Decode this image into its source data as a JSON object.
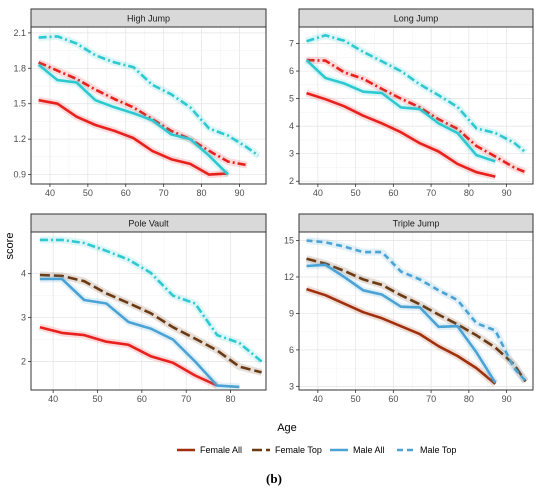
{
  "figure": {
    "caption": "(b)",
    "xlabel": "Age",
    "ylabel": "score"
  },
  "colors": {
    "Female All": "#e8211c",
    "Female Top": "#e8211c",
    "Male All": "#2ec9d0",
    "Male Top": "#2ec9d0"
  },
  "legend": [
    {
      "name": "Female All",
      "color": "#a0300b",
      "dash": "solid"
    },
    {
      "name": "Female Top",
      "color": "#6b3a13",
      "dash": "longdash"
    },
    {
      "name": "Male All",
      "color": "#4aa3d4",
      "dash": "solid"
    },
    {
      "name": "Male Top",
      "color": "#4aa3d4",
      "dash": "dashed"
    }
  ],
  "chart_data": [
    {
      "type": "line",
      "title": "High Jump",
      "xlim": [
        35,
        97
      ],
      "ylim": [
        0.82,
        2.15
      ],
      "xticks": [
        40,
        50,
        60,
        70,
        80,
        90
      ],
      "yticks": [
        0.9,
        1.2,
        1.5,
        1.8,
        2.1
      ],
      "ytick_labels": [
        "0.9",
        "1.2",
        "1.5",
        "1.8",
        "2.1"
      ],
      "series": [
        {
          "name": "Female All",
          "color": "#e8211c",
          "dash": "solid",
          "x": [
            37,
            42,
            47,
            52,
            57,
            62,
            67,
            72,
            77,
            82,
            87
          ],
          "y": [
            1.53,
            1.5,
            1.39,
            1.32,
            1.27,
            1.21,
            1.1,
            1.03,
            0.99,
            0.9,
            0.91
          ]
        },
        {
          "name": "Female Top",
          "color": "#e8211c",
          "dash": "dashdot",
          "x": [
            37,
            42,
            47,
            52,
            57,
            62,
            67,
            72,
            77,
            82,
            87,
            92
          ],
          "y": [
            1.85,
            1.78,
            1.71,
            1.62,
            1.54,
            1.47,
            1.37,
            1.27,
            1.2,
            1.1,
            1.01,
            0.98
          ]
        },
        {
          "name": "Male All",
          "color": "#2ec9d0",
          "dash": "solid",
          "x": [
            37,
            42,
            47,
            52,
            57,
            62,
            67,
            72,
            77,
            82,
            87
          ],
          "y": [
            1.83,
            1.7,
            1.68,
            1.53,
            1.47,
            1.42,
            1.36,
            1.24,
            1.2,
            1.06,
            0.9
          ]
        },
        {
          "name": "Male Top",
          "color": "#2ec9d0",
          "dash": "dashdot",
          "x": [
            37,
            42,
            47,
            52,
            57,
            62,
            67,
            72,
            77,
            82,
            87,
            92,
            95
          ],
          "y": [
            2.06,
            2.07,
            2.01,
            1.91,
            1.85,
            1.81,
            1.66,
            1.58,
            1.47,
            1.29,
            1.23,
            1.13,
            1.06
          ]
        }
      ]
    },
    {
      "type": "line",
      "title": "Long Jump",
      "xlim": [
        35,
        97
      ],
      "ylim": [
        1.9,
        7.6
      ],
      "xticks": [
        40,
        50,
        60,
        70,
        80,
        90
      ],
      "yticks": [
        2,
        3,
        4,
        5,
        6,
        7
      ],
      "ytick_labels": [
        "2",
        "3",
        "4",
        "5",
        "6",
        "7"
      ],
      "series": [
        {
          "name": "Female All",
          "color": "#e8211c",
          "dash": "solid",
          "x": [
            37,
            42,
            47,
            52,
            57,
            62,
            67,
            72,
            77,
            82,
            87
          ],
          "y": [
            5.2,
            4.98,
            4.72,
            4.38,
            4.1,
            3.78,
            3.38,
            3.08,
            2.63,
            2.33,
            2.17
          ]
        },
        {
          "name": "Female Top",
          "color": "#e8211c",
          "dash": "dashdot",
          "x": [
            37,
            42,
            47,
            52,
            57,
            62,
            67,
            72,
            77,
            82,
            87,
            92,
            95
          ],
          "y": [
            6.4,
            6.38,
            5.95,
            5.72,
            5.35,
            5.0,
            4.68,
            4.25,
            3.9,
            3.28,
            2.9,
            2.5,
            2.33
          ]
        },
        {
          "name": "Male All",
          "color": "#2ec9d0",
          "dash": "solid",
          "x": [
            37,
            42,
            47,
            52,
            57,
            62,
            67,
            72,
            77,
            82,
            87
          ],
          "y": [
            6.4,
            5.75,
            5.55,
            5.25,
            5.2,
            4.68,
            4.62,
            4.1,
            3.75,
            2.95,
            2.72
          ]
        },
        {
          "name": "Male Top",
          "color": "#2ec9d0",
          "dash": "dashdot",
          "x": [
            37,
            42,
            47,
            52,
            57,
            62,
            67,
            72,
            77,
            82,
            87,
            92,
            95
          ],
          "y": [
            7.08,
            7.3,
            7.1,
            6.7,
            6.35,
            6.0,
            5.52,
            5.12,
            4.7,
            3.92,
            3.75,
            3.4,
            3.05
          ]
        }
      ]
    },
    {
      "type": "line",
      "title": "Pole Vault",
      "xlim": [
        35,
        88
      ],
      "ylim": [
        1.35,
        4.95
      ],
      "xticks": [
        40,
        50,
        60,
        70,
        80
      ],
      "yticks": [
        2,
        3,
        4
      ],
      "ytick_labels": [
        "2",
        "3",
        "4"
      ],
      "series": [
        {
          "name": "Female All",
          "color": "#e8211c",
          "dash": "solid",
          "x": [
            37,
            42,
            47,
            52,
            57,
            62,
            67,
            72,
            77
          ],
          "y": [
            2.78,
            2.65,
            2.6,
            2.45,
            2.38,
            2.12,
            1.97,
            1.68,
            1.45
          ]
        },
        {
          "name": "Female Top",
          "color": "#6b3a13",
          "dash": "longdash",
          "x": [
            37,
            42,
            47,
            52,
            57,
            62,
            67,
            72,
            77,
            82,
            87
          ],
          "y": [
            3.97,
            3.95,
            3.83,
            3.55,
            3.33,
            3.1,
            2.78,
            2.52,
            2.25,
            1.88,
            1.75
          ]
        },
        {
          "name": "Male All",
          "color": "#4aa3d4",
          "dash": "solid",
          "x": [
            37,
            42,
            47,
            52,
            57,
            62,
            67,
            72,
            77,
            82
          ],
          "y": [
            3.88,
            3.88,
            3.4,
            3.32,
            2.9,
            2.75,
            2.5,
            2.0,
            1.45,
            1.42
          ]
        },
        {
          "name": "Male Top",
          "color": "#2ec9d0",
          "dash": "dashdot",
          "x": [
            37,
            42,
            47,
            52,
            57,
            62,
            67,
            72,
            77,
            82,
            87
          ],
          "y": [
            4.77,
            4.77,
            4.7,
            4.52,
            4.32,
            4.02,
            3.5,
            3.32,
            2.6,
            2.42,
            2.0
          ]
        }
      ]
    },
    {
      "type": "line",
      "title": "Triple Jump",
      "xlim": [
        35,
        97
      ],
      "ylim": [
        2.7,
        15.7
      ],
      "xticks": [
        40,
        50,
        60,
        70,
        80,
        90
      ],
      "yticks": [
        3,
        6,
        9,
        12,
        15
      ],
      "ytick_labels": [
        "3",
        "6",
        "9",
        "12",
        "15"
      ],
      "series": [
        {
          "name": "Female All",
          "color": "#a0300b",
          "dash": "solid",
          "x": [
            37,
            42,
            47,
            52,
            57,
            62,
            67,
            72,
            77,
            82,
            87
          ],
          "y": [
            11.0,
            10.5,
            9.8,
            9.1,
            8.6,
            7.95,
            7.3,
            6.3,
            5.5,
            4.5,
            3.2
          ]
        },
        {
          "name": "Female Top",
          "color": "#6b3a13",
          "dash": "longdash",
          "x": [
            37,
            42,
            47,
            52,
            57,
            62,
            67,
            72,
            77,
            82,
            87,
            92,
            95
          ],
          "y": [
            13.5,
            13.1,
            12.5,
            11.8,
            11.35,
            10.5,
            9.75,
            8.9,
            8.1,
            7.2,
            6.2,
            4.8,
            3.4
          ]
        },
        {
          "name": "Male All",
          "color": "#4aa3d4",
          "dash": "solid",
          "x": [
            37,
            42,
            47,
            52,
            57,
            62,
            67,
            72,
            77,
            82,
            87
          ],
          "y": [
            12.9,
            13.0,
            12.0,
            10.9,
            10.55,
            9.55,
            9.5,
            7.9,
            7.95,
            5.8,
            3.3
          ]
        },
        {
          "name": "Male Top",
          "color": "#4aa3d4",
          "dash": "dashed",
          "x": [
            37,
            42,
            47,
            52,
            57,
            62,
            67,
            72,
            77,
            82,
            87,
            92,
            95
          ],
          "y": [
            15.0,
            14.85,
            14.5,
            14.05,
            14.05,
            12.45,
            11.8,
            10.9,
            10.1,
            8.2,
            7.6,
            4.5,
            3.45
          ]
        }
      ]
    }
  ]
}
